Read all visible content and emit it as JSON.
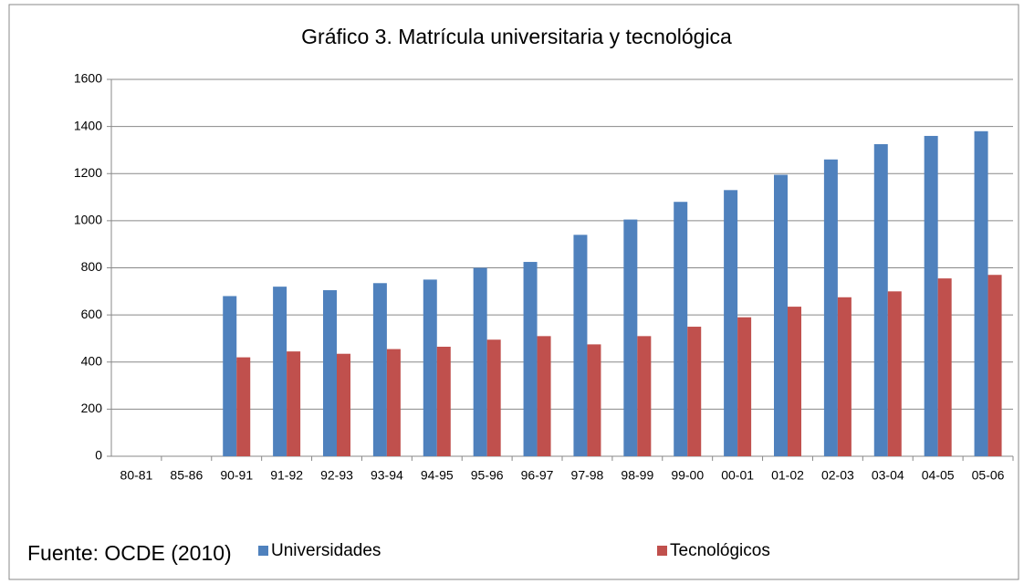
{
  "chart_data": {
    "type": "bar",
    "title": "Gráfico 3. Matrícula universitaria y tecnológica",
    "categories": [
      "80-81",
      "85-86",
      "90-91",
      "91-92",
      "92-93",
      "93-94",
      "94-95",
      "95-96",
      "96-97",
      "97-98",
      "98-99",
      "99-00",
      "00-01",
      "01-02",
      "02-03",
      "03-04",
      "04-05",
      "05-06"
    ],
    "series": [
      {
        "name": "Universidades",
        "color": "#4f81bd",
        "values": [
          null,
          null,
          680,
          720,
          705,
          735,
          750,
          800,
          825,
          940,
          1005,
          1080,
          1130,
          1195,
          1260,
          1325,
          1360,
          1380
        ]
      },
      {
        "name": "Tecnológicos",
        "color": "#c0504d",
        "values": [
          null,
          null,
          420,
          445,
          435,
          455,
          465,
          495,
          510,
          475,
          510,
          550,
          590,
          635,
          675,
          700,
          755,
          770
        ]
      }
    ],
    "ylim": [
      0,
      1600
    ],
    "yticks": [
      0,
      200,
      400,
      600,
      800,
      1000,
      1200,
      1400,
      1600
    ],
    "grid": true,
    "legend": "bottom",
    "source": "Fuente: OCDE (2010)"
  }
}
